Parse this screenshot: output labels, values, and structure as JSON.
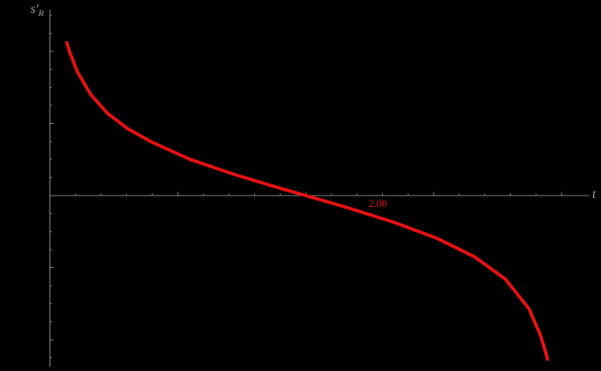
{
  "page": {
    "background": "#000000"
  },
  "axis": {
    "color": "#8f8f8f",
    "label_color": "#a8a8a8"
  },
  "labels": {
    "y_main": "s′",
    "y_sub": "R",
    "x": "t"
  },
  "chart_data": {
    "type": "line",
    "title": "",
    "xlabel": "t",
    "ylabel": "s′_R",
    "x_range": [
      0,
      4.2
    ],
    "y_range": [
      -2.6,
      2.6
    ],
    "axes_cross": [
      0,
      0
    ],
    "grid": false,
    "legend": null,
    "curve_color": "#ee1111",
    "curve_width": 4,
    "zero_crossing_t": 2.0,
    "ticks": {
      "x_minor": 0.2,
      "x_major": 1.0,
      "y_minor": 0.25,
      "y_major": 1.0
    },
    "annotations": [
      {
        "text": "2.00",
        "x": 2.565,
        "y": -0.156,
        "color": "#ee1111"
      }
    ],
    "series": [
      {
        "name": "s′_R(t)",
        "points": [
          [
            0.133,
            2.12
          ],
          [
            0.151,
            2.01
          ],
          [
            0.214,
            1.72
          ],
          [
            0.32,
            1.4
          ],
          [
            0.451,
            1.14
          ],
          [
            0.607,
            0.93
          ],
          [
            0.787,
            0.75
          ],
          [
            1.098,
            0.5
          ],
          [
            1.447,
            0.29
          ],
          [
            1.694,
            0.158
          ],
          [
            1.82,
            0.092
          ],
          [
            2.0,
            0.0
          ],
          [
            2.201,
            -0.103
          ],
          [
            2.327,
            -0.169
          ],
          [
            2.693,
            -0.373
          ],
          [
            3.028,
            -0.595
          ],
          [
            3.321,
            -0.851
          ],
          [
            3.561,
            -1.16
          ],
          [
            3.745,
            -1.57
          ],
          [
            3.836,
            -1.94
          ],
          [
            3.873,
            -2.16
          ],
          [
            3.889,
            -2.27
          ]
        ]
      }
    ]
  }
}
